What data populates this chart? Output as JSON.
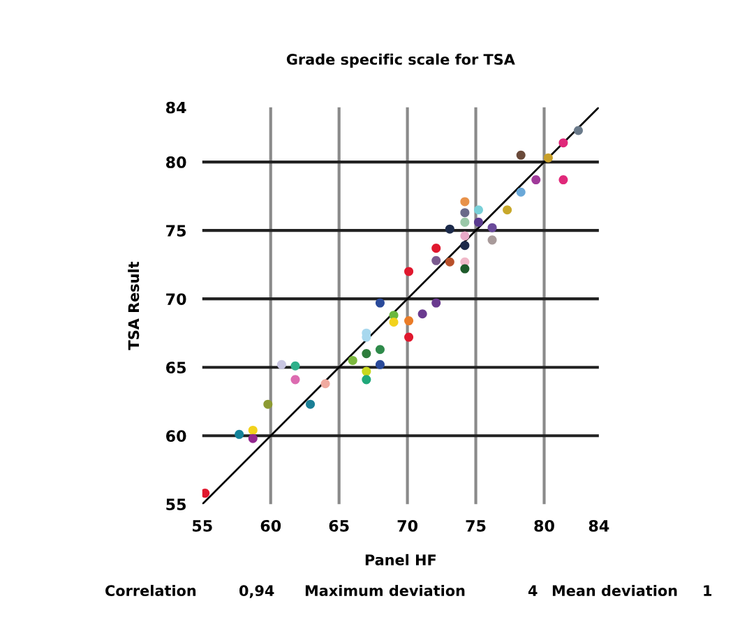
{
  "chart_data": {
    "type": "scatter",
    "title": "Grade specific scale for TSA",
    "xlabel": "Panel HF",
    "ylabel": "TSA Result",
    "xlim": [
      55,
      84
    ],
    "ylim": [
      55,
      84
    ],
    "xticks": [
      55,
      60,
      65,
      70,
      75,
      80,
      84
    ],
    "yticks": [
      55,
      60,
      65,
      70,
      75,
      80,
      84
    ],
    "grid": true,
    "series": [
      {
        "marker": "circle",
        "x": [
          55.2,
          57.7,
          58.7,
          58.7,
          59.8,
          60.8,
          61.8,
          61.8,
          62.9,
          64.0,
          66.0,
          67.0,
          67.0,
          67.0,
          67.0,
          67.0,
          68.0,
          68.0,
          68.0,
          69.0,
          69.0,
          70.1,
          70.1,
          70.1,
          71.1,
          72.1,
          72.1,
          72.1,
          73.1,
          73.1,
          74.2,
          74.2,
          74.2,
          74.2,
          74.2,
          74.2,
          74.2,
          75.2,
          75.2,
          76.2,
          76.2,
          77.3,
          78.3,
          78.3,
          79.4,
          80.3,
          81.4,
          81.4,
          82.5
        ],
        "values": [
          55.8,
          60.1,
          60.4,
          59.8,
          62.3,
          65.2,
          65.1,
          64.1,
          62.3,
          63.8,
          65.5,
          67.5,
          66.0,
          67.2,
          64.7,
          64.1,
          69.7,
          66.3,
          65.2,
          68.8,
          68.3,
          72.0,
          68.4,
          67.2,
          68.9,
          69.7,
          73.7,
          72.8,
          75.1,
          72.7,
          77.1,
          76.3,
          75.6,
          74.6,
          73.9,
          72.7,
          72.2,
          76.5,
          75.6,
          75.2,
          74.3,
          76.5,
          77.8,
          80.5,
          78.7,
          80.3,
          81.4,
          78.7,
          82.3
        ],
        "colors": [
          "#e0182e",
          "#14829a",
          "#f2d21c",
          "#93278f",
          "#8c9a32",
          "#c9c6e2",
          "#2fb08a",
          "#dc6bb0",
          "#1a7f96",
          "#f0aaa0",
          "#7bb83e",
          "#a8d8ee",
          "#2e7d3c",
          "#a8d8ee",
          "#c8d81e",
          "#20a87a",
          "#2a4a9a",
          "#2e8a4a",
          "#2a4a9a",
          "#6ab83e",
          "#f2d21c",
          "#e0182e",
          "#ea7c28",
          "#e0182e",
          "#6a3a8f",
          "#6a3a8f",
          "#e0182e",
          "#7a5a8f",
          "#1c2a4a",
          "#b8502a",
          "#e8924a",
          "#6a6a8a",
          "#9ac8a8",
          "#e8aac8",
          "#1c2a4a",
          "#f0b8c8",
          "#1e5a2a",
          "#7ad0d8",
          "#5a3a8f",
          "#6a4a9a",
          "#a89a9a",
          "#c8a82a",
          "#6aa8d8",
          "#6a4a3a",
          "#a03a9a",
          "#c8a02a",
          "#e0287a",
          "#e0287a",
          "#6a7a8a"
        ]
      },
      {
        "type": "line",
        "marker": "none",
        "x": [
          55,
          84
        ],
        "values": [
          55,
          84
        ],
        "color": "#000000"
      }
    ],
    "annotations": [
      "Correlation",
      "0,94",
      "Maximum deviation",
      "4",
      "Mean deviation",
      "1"
    ]
  }
}
